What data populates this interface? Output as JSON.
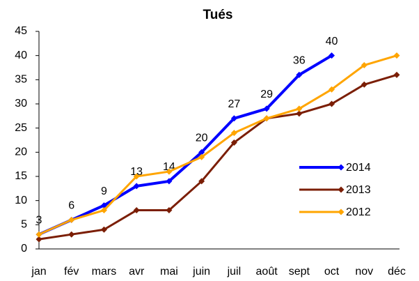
{
  "chart_data": {
    "type": "line",
    "title": "Tués",
    "categories": [
      "jan",
      "fév",
      "mars",
      "avr",
      "mai",
      "juin",
      "juil",
      "août",
      "sept",
      "oct",
      "nov",
      "déc"
    ],
    "series": [
      {
        "name": "2014",
        "color": "#0000ff",
        "data_labels": true,
        "values": [
          3,
          6,
          9,
          13,
          14,
          20,
          27,
          29,
          36,
          40,
          null,
          null
        ]
      },
      {
        "name": "2013",
        "color": "#7b1e05",
        "values": [
          2,
          3,
          4,
          8,
          8,
          14,
          22,
          27,
          28,
          30,
          34,
          36
        ]
      },
      {
        "name": "2012",
        "color": "#ffa500",
        "values": [
          3,
          6,
          8,
          15,
          16,
          19,
          24,
          27,
          29,
          33,
          38,
          40
        ]
      }
    ],
    "ylim": [
      0,
      45
    ],
    "yticks": [
      0,
      5,
      10,
      15,
      20,
      25,
      30,
      35,
      40,
      45
    ],
    "grid": false,
    "legend": "lower right"
  }
}
